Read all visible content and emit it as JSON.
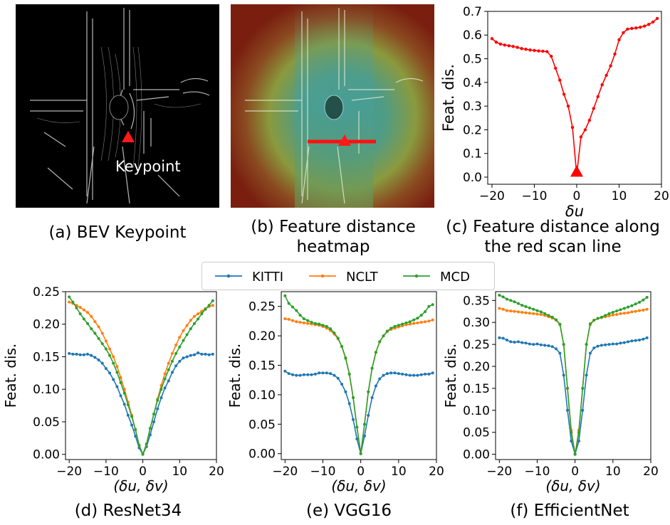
{
  "captions": {
    "a": "(a) BEV Keypoint",
    "b_line1": "(b) Feature distance",
    "b_line2": "heatmap",
    "c_line1": "(c) Feature distance along",
    "c_line2": "the red scan line",
    "d": "(d) ResNet34",
    "e": "(e) VGG16",
    "f": "(f) EfficientNet"
  },
  "bev_label": "Keypoint",
  "legend": {
    "items": [
      {
        "name": "KITTI",
        "color": "#1f77b4"
      },
      {
        "name": "NCLT",
        "color": "#ff7f0e"
      },
      {
        "name": "MCD",
        "color": "#2ca02c"
      }
    ]
  },
  "chart_data": [
    {
      "id": "c",
      "type": "line",
      "title": "",
      "xlabel": "δu",
      "ylabel": "Feat. dis.",
      "xlim": [
        -21,
        20
      ],
      "ylim": [
        -0.03,
        0.7
      ],
      "xticks": [
        -20,
        -10,
        0,
        10,
        20
      ],
      "xtick_labels": [
        "−20",
        "−10",
        "0",
        "10",
        "20"
      ],
      "yticks": [
        0.0,
        0.1,
        0.2,
        0.3,
        0.4,
        0.5,
        0.6,
        0.7
      ],
      "ytick_labels": [
        "0.0",
        "0.1",
        "0.2",
        "0.3",
        "0.4",
        "0.5",
        "0.6",
        "0.7"
      ],
      "marker": {
        "x": 0,
        "y": 0.02,
        "color": "#ff0000"
      },
      "series": [
        {
          "name": "scan",
          "color": "#ff0000",
          "x": [
            -20,
            -19,
            -18,
            -17,
            -16,
            -15,
            -14,
            -13,
            -12,
            -11,
            -10,
            -9,
            -8,
            -7,
            -6,
            -5,
            -4,
            -3,
            -2,
            -1,
            0,
            1,
            2,
            3,
            4,
            5,
            6,
            7,
            8,
            9,
            10,
            11,
            12,
            13,
            14,
            15,
            16,
            17,
            18,
            19
          ],
          "values": [
            0.585,
            0.57,
            0.562,
            0.558,
            0.555,
            0.552,
            0.548,
            0.543,
            0.54,
            0.537,
            0.535,
            0.533,
            0.532,
            0.53,
            0.51,
            0.46,
            0.41,
            0.35,
            0.3,
            0.21,
            0.01,
            0.17,
            0.2,
            0.24,
            0.29,
            0.34,
            0.39,
            0.43,
            0.47,
            0.52,
            0.58,
            0.61,
            0.625,
            0.628,
            0.63,
            0.633,
            0.638,
            0.645,
            0.655,
            0.67
          ]
        }
      ]
    },
    {
      "id": "d",
      "type": "line",
      "title": "",
      "xlabel": "(δu, δv)",
      "ylabel": "Feat. dis.",
      "xlim": [
        -21,
        20
      ],
      "ylim": [
        -0.008,
        0.25
      ],
      "xticks": [
        -20,
        -10,
        0,
        10,
        20
      ],
      "xtick_labels": [
        "−20",
        "−10",
        "0",
        "10",
        "20"
      ],
      "yticks": [
        0.0,
        0.05,
        0.1,
        0.15,
        0.2,
        0.25
      ],
      "ytick_labels": [
        "0.00",
        "0.05",
        "0.10",
        "0.15",
        "0.20",
        "0.25"
      ],
      "series": [
        {
          "name": "KITTI",
          "color": "#1f77b4",
          "x": [
            -20,
            -19,
            -18,
            -17,
            -16,
            -15,
            -14,
            -13,
            -12,
            -11,
            -10,
            -9,
            -8,
            -7,
            -6,
            -5,
            -4,
            -3,
            -2,
            -1,
            0,
            1,
            2,
            3,
            4,
            5,
            6,
            7,
            8,
            9,
            10,
            11,
            12,
            13,
            14,
            15,
            16,
            17,
            18,
            19
          ],
          "values": [
            0.155,
            0.154,
            0.154,
            0.153,
            0.153,
            0.154,
            0.152,
            0.149,
            0.145,
            0.14,
            0.132,
            0.125,
            0.115,
            0.104,
            0.09,
            0.077,
            0.06,
            0.045,
            0.028,
            0.01,
            0.0,
            0.012,
            0.03,
            0.05,
            0.07,
            0.087,
            0.102,
            0.113,
            0.126,
            0.136,
            0.143,
            0.148,
            0.15,
            0.152,
            0.153,
            0.156,
            0.154,
            0.154,
            0.153,
            0.154
          ]
        },
        {
          "name": "NCLT",
          "color": "#ff7f0e",
          "x": [
            -20,
            -19,
            -18,
            -17,
            -16,
            -15,
            -14,
            -13,
            -12,
            -11,
            -10,
            -9,
            -8,
            -7,
            -6,
            -5,
            -4,
            -3,
            -2,
            -1,
            0,
            1,
            2,
            3,
            4,
            5,
            6,
            7,
            8,
            9,
            10,
            11,
            12,
            13,
            14,
            15,
            16,
            17,
            18,
            19
          ],
          "values": [
            0.234,
            0.232,
            0.229,
            0.226,
            0.222,
            0.218,
            0.212,
            0.204,
            0.196,
            0.186,
            0.174,
            0.162,
            0.15,
            0.135,
            0.118,
            0.1,
            0.08,
            0.06,
            0.038,
            0.014,
            0.0,
            0.015,
            0.04,
            0.062,
            0.085,
            0.106,
            0.124,
            0.14,
            0.155,
            0.168,
            0.18,
            0.19,
            0.198,
            0.206,
            0.212,
            0.216,
            0.22,
            0.224,
            0.227,
            0.229
          ]
        },
        {
          "name": "MCD",
          "color": "#2ca02c",
          "x": [
            -20,
            -19,
            -18,
            -17,
            -16,
            -15,
            -14,
            -13,
            -12,
            -11,
            -10,
            -9,
            -8,
            -7,
            -6,
            -5,
            -4,
            -3,
            -2,
            -1,
            0,
            1,
            2,
            3,
            4,
            5,
            6,
            7,
            8,
            9,
            10,
            11,
            12,
            13,
            14,
            15,
            16,
            17,
            18,
            19
          ],
          "values": [
            0.242,
            0.234,
            0.225,
            0.216,
            0.208,
            0.201,
            0.193,
            0.186,
            0.178,
            0.17,
            0.162,
            0.152,
            0.14,
            0.126,
            0.11,
            0.094,
            0.076,
            0.058,
            0.038,
            0.014,
            0.0,
            0.016,
            0.04,
            0.062,
            0.083,
            0.1,
            0.116,
            0.13,
            0.143,
            0.155,
            0.165,
            0.175,
            0.184,
            0.193,
            0.201,
            0.208,
            0.216,
            0.223,
            0.229,
            0.236
          ]
        }
      ]
    },
    {
      "id": "e",
      "type": "line",
      "title": "",
      "xlabel": "(δu, δv)",
      "ylabel": "Feat. dis.",
      "xlim": [
        -21,
        20
      ],
      "ylim": [
        -0.01,
        0.275
      ],
      "xticks": [
        -20,
        -10,
        0,
        10,
        20
      ],
      "xtick_labels": [
        "−20",
        "−10",
        "0",
        "10",
        "20"
      ],
      "yticks": [
        0.0,
        0.05,
        0.1,
        0.15,
        0.2,
        0.25
      ],
      "ytick_labels": [
        "0.00",
        "0.05",
        "0.10",
        "0.15",
        "0.20",
        "0.25"
      ],
      "series": [
        {
          "name": "KITTI",
          "color": "#1f77b4",
          "x": [
            -20,
            -19,
            -18,
            -17,
            -16,
            -15,
            -14,
            -13,
            -12,
            -11,
            -10,
            -9,
            -8,
            -7,
            -6,
            -5,
            -4,
            -3,
            -2,
            -1,
            0,
            1,
            2,
            3,
            4,
            5,
            6,
            7,
            8,
            9,
            10,
            11,
            12,
            13,
            14,
            15,
            16,
            17,
            18,
            19
          ],
          "values": [
            0.14,
            0.136,
            0.134,
            0.133,
            0.133,
            0.134,
            0.134,
            0.134,
            0.135,
            0.137,
            0.137,
            0.137,
            0.136,
            0.133,
            0.128,
            0.118,
            0.105,
            0.085,
            0.058,
            0.025,
            0.0,
            0.03,
            0.065,
            0.095,
            0.115,
            0.127,
            0.133,
            0.136,
            0.137,
            0.137,
            0.136,
            0.135,
            0.134,
            0.133,
            0.133,
            0.133,
            0.134,
            0.135,
            0.135,
            0.137
          ]
        },
        {
          "name": "NCLT",
          "color": "#ff7f0e",
          "x": [
            -20,
            -19,
            -18,
            -17,
            -16,
            -15,
            -14,
            -13,
            -12,
            -11,
            -10,
            -9,
            -8,
            -7,
            -6,
            -5,
            -4,
            -3,
            -2,
            -1,
            0,
            1,
            2,
            3,
            4,
            5,
            6,
            7,
            8,
            9,
            10,
            11,
            12,
            13,
            14,
            15,
            16,
            17,
            18,
            19
          ],
          "values": [
            0.229,
            0.228,
            0.226,
            0.224,
            0.223,
            0.222,
            0.221,
            0.22,
            0.219,
            0.218,
            0.216,
            0.213,
            0.209,
            0.203,
            0.195,
            0.182,
            0.163,
            0.135,
            0.095,
            0.045,
            0.0,
            0.05,
            0.105,
            0.145,
            0.172,
            0.19,
            0.2,
            0.207,
            0.211,
            0.213,
            0.215,
            0.217,
            0.219,
            0.22,
            0.221,
            0.222,
            0.223,
            0.224,
            0.225,
            0.227
          ]
        },
        {
          "name": "MCD",
          "color": "#2ca02c",
          "x": [
            -20,
            -19,
            -18,
            -17,
            -16,
            -15,
            -14,
            -13,
            -12,
            -11,
            -10,
            -9,
            -8,
            -7,
            -6,
            -5,
            -4,
            -3,
            -2,
            -1,
            0,
            1,
            2,
            3,
            4,
            5,
            6,
            7,
            8,
            9,
            10,
            11,
            12,
            13,
            14,
            15,
            16,
            17,
            18,
            19
          ],
          "values": [
            0.268,
            0.255,
            0.249,
            0.243,
            0.235,
            0.229,
            0.226,
            0.223,
            0.221,
            0.22,
            0.218,
            0.216,
            0.212,
            0.205,
            0.196,
            0.182,
            0.162,
            0.135,
            0.095,
            0.045,
            0.0,
            0.05,
            0.105,
            0.145,
            0.172,
            0.19,
            0.2,
            0.208,
            0.213,
            0.216,
            0.218,
            0.22,
            0.222,
            0.224,
            0.227,
            0.23,
            0.235,
            0.241,
            0.25,
            0.253
          ]
        }
      ]
    },
    {
      "id": "f",
      "type": "line",
      "title": "",
      "xlabel": "(δu, δv)",
      "ylabel": "Feat. dis.",
      "xlim": [
        -21,
        20
      ],
      "ylim": [
        -0.012,
        0.37
      ],
      "xticks": [
        -20,
        -10,
        0,
        10,
        20
      ],
      "xtick_labels": [
        "−20",
        "−10",
        "0",
        "10",
        "20"
      ],
      "yticks": [
        0.0,
        0.05,
        0.1,
        0.15,
        0.2,
        0.25,
        0.3,
        0.35
      ],
      "ytick_labels": [
        "0.00",
        "0.05",
        "0.10",
        "0.15",
        "0.20",
        "0.25",
        "0.30",
        "0.35"
      ],
      "series": [
        {
          "name": "KITTI",
          "color": "#1f77b4",
          "x": [
            -20,
            -19,
            -18,
            -17,
            -16,
            -15,
            -14,
            -13,
            -12,
            -11,
            -10,
            -9,
            -8,
            -7,
            -6,
            -5,
            -4,
            -3,
            -2,
            -1,
            0,
            1,
            2,
            3,
            4,
            5,
            6,
            7,
            8,
            9,
            10,
            11,
            12,
            13,
            14,
            15,
            16,
            17,
            18,
            19
          ],
          "values": [
            0.265,
            0.264,
            0.26,
            0.256,
            0.255,
            0.256,
            0.254,
            0.253,
            0.251,
            0.25,
            0.251,
            0.249,
            0.248,
            0.247,
            0.245,
            0.24,
            0.23,
            0.18,
            0.1,
            0.03,
            0.0,
            0.03,
            0.1,
            0.18,
            0.23,
            0.242,
            0.246,
            0.248,
            0.249,
            0.25,
            0.251,
            0.251,
            0.253,
            0.254,
            0.256,
            0.258,
            0.259,
            0.26,
            0.262,
            0.265
          ]
        },
        {
          "name": "NCLT",
          "color": "#ff7f0e",
          "x": [
            -20,
            -19,
            -18,
            -17,
            -16,
            -15,
            -14,
            -13,
            -12,
            -11,
            -10,
            -9,
            -8,
            -7,
            -6,
            -5,
            -4,
            -3,
            -2,
            -1,
            0,
            1,
            2,
            3,
            4,
            5,
            6,
            7,
            8,
            9,
            10,
            11,
            12,
            13,
            14,
            15,
            16,
            17,
            18,
            19
          ],
          "values": [
            0.332,
            0.33,
            0.327,
            0.326,
            0.325,
            0.324,
            0.323,
            0.322,
            0.321,
            0.32,
            0.319,
            0.318,
            0.316,
            0.313,
            0.31,
            0.305,
            0.295,
            0.25,
            0.15,
            0.055,
            0.0,
            0.055,
            0.15,
            0.25,
            0.295,
            0.305,
            0.309,
            0.311,
            0.313,
            0.315,
            0.317,
            0.318,
            0.32,
            0.321,
            0.322,
            0.324,
            0.325,
            0.327,
            0.328,
            0.33
          ]
        },
        {
          "name": "MCD",
          "color": "#2ca02c",
          "x": [
            -20,
            -19,
            -18,
            -17,
            -16,
            -15,
            -14,
            -13,
            -12,
            -11,
            -10,
            -9,
            -8,
            -7,
            -6,
            -5,
            -4,
            -3,
            -2,
            -1,
            0,
            1,
            2,
            3,
            4,
            5,
            6,
            7,
            8,
            9,
            10,
            11,
            12,
            13,
            14,
            15,
            16,
            17,
            18,
            19
          ],
          "values": [
            0.362,
            0.358,
            0.353,
            0.35,
            0.347,
            0.343,
            0.339,
            0.336,
            0.333,
            0.33,
            0.327,
            0.324,
            0.32,
            0.316,
            0.312,
            0.306,
            0.296,
            0.25,
            0.15,
            0.05,
            0.0,
            0.05,
            0.15,
            0.25,
            0.297,
            0.305,
            0.309,
            0.312,
            0.316,
            0.32,
            0.323,
            0.326,
            0.329,
            0.332,
            0.335,
            0.338,
            0.342,
            0.346,
            0.351,
            0.357
          ]
        }
      ]
    }
  ]
}
